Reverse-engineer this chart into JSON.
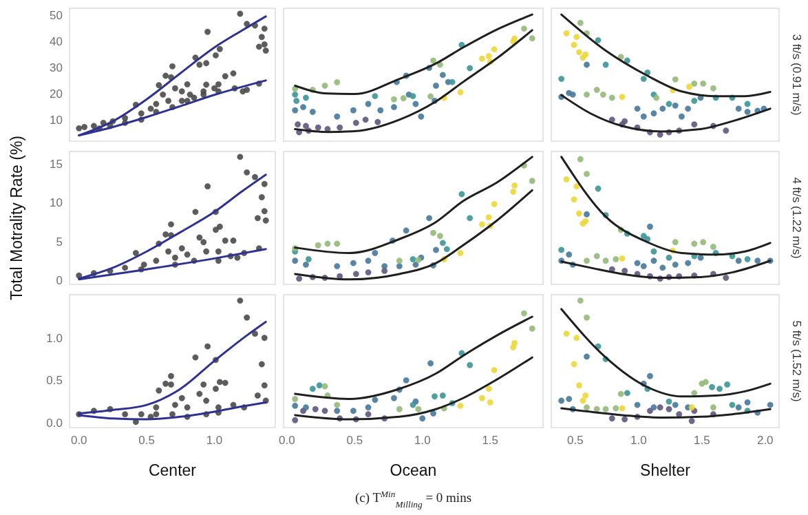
{
  "chart_data": [
    {
      "type": "scatter",
      "tick_labels": "y",
      "xlim": [
        -0.07,
        1.45
      ],
      "ylim": [
        1.8,
        52.6
      ],
      "yticks": [
        10,
        20,
        30,
        40,
        50
      ],
      "series": [
        {
          "marker": "circle",
          "color": "#4a4a4a",
          "x": [
            0,
            0.04,
            0.11,
            0.18,
            0.25,
            0.34,
            0.42,
            0.46,
            0.53,
            0.57,
            0.59,
            0.64,
            0.68,
            0.69,
            0.62,
            0.66,
            0.71,
            0.76,
            0.8,
            0.86,
            0.89,
            0.94,
            0.95,
            0.82,
            0.92,
            0.94,
            1.03,
            1.01,
            1.04,
            1.08,
            1.14,
            1.15,
            1.21,
            1.19,
            1.24,
            1.3,
            1.33,
            1.35,
            1.37,
            1.38,
            1.37,
            1.33,
            1.24,
            0.34,
            0.46,
            0.57,
            0.69,
            0.8,
            0.92,
            1.03,
            0.15,
            0.23,
            0.76,
            0.85,
            1.0
          ],
          "values": [
            6.7,
            7.2,
            7.6,
            8.8,
            9.4,
            10.6,
            15.7,
            12.4,
            14.2,
            16,
            23.2,
            26.8,
            26.2,
            30.4,
            19.6,
            17.2,
            22,
            20.8,
            23.5,
            33.7,
            31,
            31.6,
            43.6,
            19.6,
            20.8,
            23.4,
            23.5,
            34.6,
            37,
            26.6,
            27.7,
            22,
            20.8,
            50.5,
            46.6,
            46,
            37.9,
            41.6,
            44.8,
            36.4,
            38.8,
            23.8,
            21.4,
            8.8,
            10,
            13,
            14.8,
            17.2,
            19.6,
            20.8,
            6.6,
            7.6,
            17.2,
            18.4,
            22
          ]
        },
        {
          "type": "line",
          "marker": "none",
          "color": "#2e3192",
          "x": [
            0,
            0.25,
            0.5,
            0.75,
            1.0,
            1.2,
            1.38
          ],
          "values": [
            4,
            9.4,
            17.8,
            27.8,
            37.6,
            44,
            49.5
          ]
        },
        {
          "type": "line",
          "marker": "none",
          "color": "#2e3192",
          "x": [
            0,
            0.25,
            0.5,
            0.75,
            1.0,
            1.2,
            1.38
          ],
          "values": [
            4,
            7.2,
            11,
            15.2,
            19.5,
            22.5,
            25
          ]
        }
      ]
    },
    {
      "type": "scatter",
      "tick_labels": false,
      "xlim": [
        -0.025,
        1.89
      ],
      "ylim": [
        1.8,
        52.6
      ],
      "series": [
        {
          "marker": "circle",
          "color": "#5f557d",
          "x": [
            0.09,
            0.16,
            0.23,
            0.3,
            0.39,
            0.51,
            0.58,
            0.67,
            0.14,
            0.08
          ],
          "values": [
            5.2,
            5.8,
            7,
            6.4,
            7,
            8.8,
            10,
            9.1,
            7.6,
            8.2
          ]
        },
        {
          "marker": "circle",
          "color": "#47789a",
          "x": [
            0.06,
            0.12,
            0.19,
            0.37,
            0.49,
            0.6,
            0.69,
            0.79,
            0.88,
            0.81,
            0.99,
            0.95,
            1.09,
            1.15,
            1.05,
            1.19,
            1.1,
            0.9
          ],
          "values": [
            13.6,
            14.8,
            13,
            11.2,
            13.6,
            16,
            13.6,
            14.8,
            26.8,
            24.4,
            11.2,
            16,
            17.2,
            27.1,
            29.8,
            24.4,
            23,
            19.6
          ]
        },
        {
          "marker": "circle",
          "color": "#3d9596",
          "x": [
            0.06,
            0.07,
            0.14,
            0.65,
            1.29,
            1.35,
            1.22,
            0.93
          ],
          "values": [
            19.6,
            17.2,
            18.4,
            19,
            38.6,
            29.7,
            24.4,
            19
          ]
        },
        {
          "marker": "circle",
          "color": "#93b97a",
          "x": [
            0.06,
            0.19,
            0.28,
            0.37,
            0.79,
            0.86,
            1.06,
            1.08,
            1.13,
            1.75,
            1.81
          ],
          "values": [
            21.8,
            21.4,
            23,
            24.3,
            17.8,
            18.2,
            18.9,
            32.6,
            31,
            44.8,
            41.1
          ]
        },
        {
          "marker": "circle",
          "color": "#ecd73a",
          "x": [
            1.16,
            1.28,
            1.44,
            1.49,
            1.5,
            1.53,
            1.67,
            1.68
          ],
          "values": [
            18.4,
            20.5,
            33.3,
            34.3,
            32.1,
            36.9,
            39.9,
            41
          ]
        },
        {
          "type": "line",
          "marker": "none",
          "color": "#1f1f1f",
          "x": [
            0.06,
            0.3,
            0.5,
            0.83,
            1.1,
            1.3,
            1.55,
            1.81
          ],
          "values": [
            23,
            20,
            19.8,
            25.6,
            31.5,
            37.6,
            44.5,
            50.2
          ]
        },
        {
          "type": "line",
          "marker": "none",
          "color": "#1f1f1f",
          "x": [
            0.06,
            0.3,
            0.5,
            0.83,
            1.1,
            1.3,
            1.55,
            1.81
          ],
          "values": [
            6.4,
            5.3,
            5.6,
            10,
            17,
            24.4,
            33.5,
            44.2
          ]
        }
      ]
    },
    {
      "type": "scatter",
      "tick_labels": false,
      "y2label": "3 ft/s (0.91 m/s)",
      "xlim": [
        0.31,
        2.11
      ],
      "ylim": [
        1.8,
        52.6
      ],
      "series": [
        {
          "marker": "circle",
          "color": "#5f557d",
          "x": [
            0.79,
            0.89,
            0.99,
            1.09,
            1.17,
            1.24,
            1.32,
            1.44,
            1.59,
            1.69,
            0.87
          ],
          "values": [
            10,
            9.4,
            7,
            5.2,
            4.3,
            5.2,
            5.8,
            8.2,
            7.6,
            5.8,
            8.2
          ]
        },
        {
          "marker": "circle",
          "color": "#47789a",
          "x": [
            0.39,
            0.45,
            0.48,
            0.99,
            1.04,
            1.12,
            1.19,
            1.29,
            1.39,
            1.49,
            1.79,
            1.86,
            1.94,
            1.99,
            0.59,
            1.34
          ],
          "values": [
            18.7,
            20.2,
            19.6,
            14.2,
            11.2,
            12.4,
            14.2,
            15.4,
            14.2,
            18.4,
            14.2,
            13,
            13.4,
            14.2,
            31,
            11.2
          ]
        },
        {
          "marker": "circle",
          "color": "#3d9596",
          "x": [
            0.39,
            0.68,
            0.74,
            0.91,
            1.07,
            1.04,
            1.12,
            1.24,
            1.44,
            1.61,
            1.74,
            1.86
          ],
          "values": [
            25.6,
            40.4,
            31,
            32.6,
            28,
            25.6,
            19.6,
            16,
            17.2,
            18.4,
            18.4,
            16
          ]
        },
        {
          "marker": "circle",
          "color": "#93b97a",
          "x": [
            0.54,
            0.59,
            0.86,
            0.59,
            0.67,
            0.72,
            0.79,
            1.29,
            1.44,
            1.51,
            1.59,
            1.14
          ],
          "values": [
            47,
            43,
            34,
            19.6,
            21.4,
            19.6,
            18.4,
            25.4,
            23.8,
            23.8,
            22,
            18.4
          ]
        },
        {
          "marker": "circle",
          "color": "#ecd73a",
          "x": [
            0.43,
            0.51,
            0.49,
            0.53,
            0.56,
            0.58,
            0.87,
            1.27,
            1.4
          ],
          "values": [
            43,
            41.6,
            38.6,
            35.8,
            33.7,
            34.9,
            18.7,
            21.3,
            22.6
          ]
        },
        {
          "type": "line",
          "marker": "none",
          "color": "#1f1f1f",
          "x": [
            0.39,
            0.74,
            1.07,
            1.34,
            1.61,
            1.84,
            2.04
          ],
          "values": [
            50.2,
            36.4,
            26.8,
            20.8,
            19,
            19,
            20.6
          ]
        },
        {
          "type": "line",
          "marker": "none",
          "color": "#1f1f1f",
          "x": [
            0.39,
            0.62,
            0.87,
            1.19,
            1.49,
            1.74,
            2.04
          ],
          "values": [
            19.4,
            12.4,
            7.6,
            5.5,
            6.4,
            9.4,
            14.2
          ]
        }
      ]
    },
    {
      "type": "scatter",
      "tick_labels": "y",
      "ylabel": "Total Motrality Rate (%)",
      "xlim": [
        -0.07,
        1.45
      ],
      "ylim": [
        -0.54,
        16.6
      ],
      "yticks": [
        0,
        5,
        10,
        15
      ],
      "series": [
        {
          "marker": "circle",
          "color": "#4a4a4a",
          "x": [
            0,
            0.11,
            0.23,
            0.34,
            0.42,
            0.48,
            0.57,
            0.59,
            0.64,
            0.68,
            0.68,
            0.66,
            0.71,
            0.76,
            0.8,
            0.86,
            0.89,
            0.92,
            0.95,
            0.94,
            1.01,
            1.01,
            1.04,
            1.03,
            1.08,
            1.14,
            1.12,
            1.19,
            1.24,
            1.3,
            1.32,
            1.35,
            1.37,
            1.37,
            1.38,
            1.33,
            1.22,
            0.85,
            0.71,
            0.46,
            1.03,
            1.17
          ],
          "values": [
            0.6,
            0.9,
            1.2,
            1.6,
            3.5,
            2,
            2.5,
            4.7,
            5.9,
            7.2,
            5.8,
            3.7,
            2.9,
            4.1,
            3.3,
            8.8,
            5.5,
            4.9,
            12.1,
            3.7,
            8.8,
            6.5,
            6.9,
            3.7,
            5.1,
            5.1,
            3.1,
            15.9,
            13.9,
            13.3,
            8,
            10.7,
            12.4,
            8.9,
            7.7,
            4.1,
            3.5,
            2.5,
            2,
            1.4,
            2.5,
            2.9
          ]
        },
        {
          "type": "line",
          "marker": "none",
          "color": "#2e3192",
          "x": [
            0,
            0.25,
            0.5,
            0.75,
            1.0,
            1.2,
            1.38
          ],
          "values": [
            0.2,
            1.6,
            3.7,
            6.2,
            8.8,
            11.4,
            13.6
          ]
        },
        {
          "type": "line",
          "marker": "none",
          "color": "#2e3192",
          "x": [
            0,
            0.5,
            1.0,
            1.38
          ],
          "values": [
            0.1,
            1.4,
            2.8,
            4.0
          ]
        }
      ]
    },
    {
      "type": "scatter",
      "tick_labels": false,
      "xlim": [
        -0.025,
        1.89
      ],
      "ylim": [
        -0.54,
        16.6
      ],
      "series": [
        {
          "marker": "circle",
          "color": "#5f557d",
          "x": [
            0.09,
            0.19,
            0.28,
            0.39,
            0.51,
            0.6,
            0.72
          ],
          "values": [
            0.2,
            0.4,
            0.3,
            0.5,
            0.8,
            1,
            1.2
          ]
        },
        {
          "marker": "circle",
          "color": "#47789a",
          "x": [
            0.06,
            0.14,
            0.37,
            0.49,
            0.6,
            0.72,
            0.83,
            0.88,
            0.78,
            0.95,
            0.99,
            1.08,
            1.1,
            1.05,
            0.65
          ],
          "values": [
            2.5,
            2,
            1.8,
            2.2,
            2.5,
            1.8,
            1.8,
            6.4,
            5.1,
            2,
            2.9,
            1.9,
            3.9,
            8,
            3.5
          ]
        },
        {
          "marker": "circle",
          "color": "#3d9596",
          "x": [
            0.06,
            0.16,
            1.29,
            1.35,
            1.15,
            1.18,
            0.93
          ],
          "values": [
            3.7,
            2.7,
            11.1,
            8,
            4.8,
            4,
            2.7
          ]
        },
        {
          "marker": "circle",
          "color": "#93b97a",
          "x": [
            0.06,
            0.23,
            0.3,
            0.37,
            0.83,
            0.97,
            1.08,
            1.13,
            1.75,
            1.81
          ],
          "values": [
            4.1,
            4.5,
            4.7,
            4.7,
            2.5,
            2.6,
            6.1,
            5.7,
            14.8,
            12.8
          ]
        },
        {
          "marker": "circle",
          "color": "#ecd73a",
          "x": [
            1.16,
            1.28,
            1.44,
            1.49,
            1.5,
            1.53,
            1.67,
            1.68
          ],
          "values": [
            2.7,
            3.5,
            7.2,
            8.1,
            7,
            9.8,
            11.4,
            12.2
          ]
        },
        {
          "type": "line",
          "marker": "none",
          "color": "#1f1f1f",
          "x": [
            0.06,
            0.46,
            0.83,
            1.1,
            1.3,
            1.55,
            1.81
          ],
          "values": [
            4.2,
            3.5,
            5.3,
            7.5,
            10.2,
            12.6,
            15.9
          ]
        },
        {
          "type": "line",
          "marker": "none",
          "color": "#1f1f1f",
          "x": [
            0.06,
            0.46,
            0.83,
            1.1,
            1.3,
            1.55,
            1.81
          ],
          "values": [
            0.8,
            0.1,
            0.8,
            2.2,
            4.5,
            7.7,
            11.6
          ]
        }
      ]
    },
    {
      "type": "scatter",
      "tick_labels": false,
      "y2label": "4 ft/s (1.22 m/s)",
      "xlim": [
        0.31,
        2.11
      ],
      "ylim": [
        -0.54,
        16.6
      ],
      "series": [
        {
          "marker": "circle",
          "color": "#5f557d",
          "x": [
            0.79,
            0.89,
            0.99,
            1.09,
            1.17,
            1.24,
            1.32,
            1.44,
            1.59,
            1.69
          ],
          "values": [
            1.4,
            1.2,
            0.8,
            0.5,
            0.2,
            0.4,
            0.5,
            0.6,
            0.8,
            0.3
          ]
        },
        {
          "marker": "circle",
          "color": "#47789a",
          "x": [
            0.39,
            0.45,
            0.48,
            0.99,
            1.04,
            1.12,
            1.19,
            1.29,
            1.39,
            1.49,
            1.79,
            1.94,
            2.04,
            0.59,
            1.09
          ],
          "values": [
            2.5,
            3.3,
            2,
            2.2,
            1.8,
            2.5,
            1.6,
            2,
            2.2,
            2.9,
            2.5,
            2.5,
            2.5,
            8.5,
            6.9
          ]
        },
        {
          "marker": "circle",
          "color": "#3d9596",
          "x": [
            0.39,
            0.68,
            0.74,
            0.91,
            1.07,
            1.04,
            1.12,
            1.24,
            1.44,
            1.61,
            1.74,
            1.86
          ],
          "values": [
            3.9,
            11.8,
            8.4,
            6,
            5.3,
            5.7,
            3.7,
            2.9,
            3.1,
            3.5,
            3.1,
            2.7
          ]
        },
        {
          "marker": "circle",
          "color": "#93b97a",
          "x": [
            0.54,
            0.59,
            0.86,
            0.59,
            0.67,
            0.74,
            0.82,
            1.29,
            1.44,
            1.51,
            1.59
          ],
          "values": [
            15.6,
            13.7,
            6.5,
            2.5,
            3.1,
            2.5,
            2.7,
            4.9,
            4.7,
            4.9,
            4.3
          ]
        },
        {
          "marker": "circle",
          "color": "#ecd73a",
          "x": [
            0.43,
            0.51,
            0.49,
            0.53,
            0.56,
            0.58,
            0.87,
            1.27
          ],
          "values": [
            13,
            12.1,
            10.4,
            8.6,
            7.3,
            7.6,
            2.8,
            3.8
          ]
        },
        {
          "type": "line",
          "marker": "none",
          "color": "#1f1f1f",
          "x": [
            0.39,
            0.74,
            1.07,
            1.34,
            1.61,
            1.84,
            2.04
          ],
          "values": [
            15.9,
            8.2,
            4.9,
            3.5,
            3.3,
            3.7,
            4.8
          ]
        },
        {
          "type": "line",
          "marker": "none",
          "color": "#1f1f1f",
          "x": [
            0.39,
            0.62,
            0.87,
            1.19,
            1.49,
            1.74,
            2.04
          ],
          "values": [
            2.4,
            1.6,
            0.8,
            0.3,
            0.4,
            1,
            2.5
          ]
        }
      ]
    },
    {
      "type": "scatter",
      "xlabel": "Center",
      "xlim": [
        -0.07,
        1.45
      ],
      "xticks": [
        {
          "value": 0,
          "label": "0.0"
        },
        {
          "value": 0.5,
          "label": "0.5"
        },
        {
          "value": 1,
          "label": "1.0"
        }
      ],
      "ylim": [
        -0.057,
        1.51
      ],
      "yticks": [
        {
          "value": 0,
          "label": "0.0"
        },
        {
          "value": 0.5,
          "label": "0.5"
        },
        {
          "value": 1,
          "label": "1.0"
        }
      ],
      "series": [
        {
          "marker": "circle",
          "color": "#4a4a4a",
          "x": [
            0,
            0.11,
            0.23,
            0.34,
            0.42,
            0.46,
            0.57,
            0.57,
            0.59,
            0.64,
            0.68,
            0.68,
            0.71,
            0.76,
            0.8,
            0.86,
            0.89,
            0.92,
            0.95,
            0.94,
            1.01,
            1.01,
            1.04,
            1.03,
            1.08,
            1.14,
            1.19,
            1.24,
            1.3,
            1.32,
            1.35,
            1.37,
            1.37,
            1.38,
            0.94,
            0.8,
            0.69,
            0.53,
            1.03,
            1.22
          ],
          "values": [
            0.1,
            0.14,
            0.16,
            0.1,
            0.01,
            0.1,
            0.1,
            0.18,
            0.38,
            0.46,
            0.55,
            0.45,
            0.21,
            0.29,
            0.18,
            0.77,
            0.34,
            0.45,
            0.9,
            0.26,
            0.74,
            0.4,
            0.48,
            0.18,
            0.47,
            0.21,
            1.44,
            1.24,
            1.05,
            0.32,
            0.69,
            1.0,
            0.44,
            0.26,
            0.1,
            0.07,
            0.1,
            0.07,
            0.12,
            0.18
          ]
        },
        {
          "type": "line",
          "marker": "none",
          "color": "#2e3192",
          "x": [
            0,
            0.25,
            0.5,
            0.75,
            1.0,
            1.24,
            1.38
          ],
          "values": [
            0.11,
            0.15,
            0.21,
            0.4,
            0.73,
            1.03,
            1.19
          ]
        },
        {
          "type": "line",
          "marker": "none",
          "color": "#2e3192",
          "x": [
            0,
            0.25,
            0.5,
            0.75,
            1.0,
            1.2,
            1.38
          ],
          "values": [
            0.09,
            0.05,
            0.04,
            0.07,
            0.13,
            0.19,
            0.24
          ]
        }
      ]
    },
    {
      "type": "scatter",
      "tick_labels": "x",
      "xlabel": "Ocean",
      "annotations": [
        "(c) T$^{Min}$$_{Milling}$ = 0 mins"
      ],
      "xlim": [
        -0.025,
        1.89
      ],
      "xticks": [
        {
          "value": 0,
          "label": "0.0"
        },
        {
          "value": 0.5,
          "label": "0.5"
        },
        {
          "value": 1,
          "label": "1.0"
        },
        {
          "value": 1.5,
          "label": "1.5"
        }
      ],
      "ylim": [
        -0.057,
        1.51
      ],
      "series": [
        {
          "marker": "circle",
          "color": "#5f557d",
          "x": [
            0.06,
            0.12,
            0.21,
            0.28,
            0.39,
            0.51,
            0.6,
            0.72
          ],
          "values": [
            0.03,
            0.14,
            0.16,
            0.14,
            0.05,
            0.04,
            0.1,
            0.05
          ]
        },
        {
          "marker": "circle",
          "color": "#47789a",
          "x": [
            0.06,
            0.14,
            0.37,
            0.49,
            0.6,
            0.79,
            0.88,
            0.83,
            0.95,
            1.0,
            1.06,
            1.08,
            0.65
          ],
          "values": [
            0.2,
            0.18,
            0.14,
            0.14,
            0.18,
            0.29,
            0.5,
            0.39,
            0.25,
            0.05,
            0.7,
            0.11,
            0.27
          ]
        },
        {
          "marker": "circle",
          "color": "#3d9596",
          "x": [
            0.19,
            0.24,
            1.29,
            1.35,
            1.09,
            1.15,
            0.93,
            1.22
          ],
          "values": [
            0.4,
            0.44,
            0.82,
            0.68,
            0.31,
            0.32,
            0.21,
            0.23
          ]
        },
        {
          "marker": "circle",
          "color": "#93b97a",
          "x": [
            0.06,
            0.28,
            0.3,
            0.37,
            0.83,
            0.97,
            1.16,
            1.75,
            1.81
          ],
          "values": [
            0.28,
            0.43,
            0.32,
            0.21,
            0.16,
            0.16,
            0.17,
            1.29,
            1.11
          ]
        },
        {
          "marker": "circle",
          "color": "#ecd73a",
          "x": [
            1.28,
            1.44,
            1.49,
            1.5,
            1.53,
            1.67,
            1.68
          ],
          "values": [
            0.2,
            0.29,
            0.4,
            0.24,
            0.62,
            0.89,
            0.94
          ]
        },
        {
          "type": "line",
          "marker": "none",
          "color": "#1f1f1f",
          "x": [
            0.06,
            0.46,
            0.83,
            1.1,
            1.3,
            1.55,
            1.81
          ],
          "values": [
            0.34,
            0.28,
            0.4,
            0.58,
            0.79,
            1.03,
            1.25
          ]
        },
        {
          "type": "line",
          "marker": "none",
          "color": "#1f1f1f",
          "x": [
            0.06,
            0.46,
            0.83,
            1.1,
            1.3,
            1.55,
            1.81
          ],
          "values": [
            0.09,
            0.04,
            0.07,
            0.16,
            0.29,
            0.51,
            0.77
          ]
        }
      ]
    },
    {
      "type": "scatter",
      "tick_labels": "x",
      "xlabel": "Shelter",
      "y2label": "5 ft/s (1.52 m/s)",
      "xlim": [
        0.31,
        2.11
      ],
      "xticks": [
        {
          "value": 0.5,
          "label": "0.5"
        },
        {
          "value": 1,
          "label": "1.0"
        },
        {
          "value": 1.5,
          "label": "1.5"
        },
        {
          "value": 2,
          "label": "2.0"
        }
      ],
      "ylim": [
        -0.057,
        1.51
      ],
      "series": [
        {
          "marker": "circle",
          "color": "#5f557d",
          "x": [
            0.79,
            0.89,
            0.99,
            1.09,
            1.17,
            1.24,
            1.32,
            1.42,
            1.44,
            1.59
          ],
          "values": [
            0.05,
            0.04,
            0.07,
            0.14,
            0.18,
            0.16,
            0.1,
            0.02,
            0.14,
            0.1
          ]
        },
        {
          "marker": "circle",
          "color": "#47789a",
          "x": [
            0.39,
            0.45,
            0.48,
            0.59,
            0.99,
            1.04,
            1.09,
            1.12,
            1.29,
            1.39,
            1.79,
            1.94,
            2.04,
            1.86
          ],
          "values": [
            0.26,
            0.28,
            0.16,
            0.78,
            0.21,
            0.46,
            0.55,
            0.18,
            0.21,
            0.18,
            0.18,
            0.12,
            0.21,
            0.24
          ]
        },
        {
          "marker": "circle",
          "color": "#3d9596",
          "x": [
            0.68,
            0.74,
            0.91,
            1.07,
            1.24,
            1.58,
            1.7,
            1.74,
            1.86,
            1.64
          ],
          "values": [
            0.9,
            0.75,
            0.35,
            0.4,
            0.25,
            0.42,
            0.45,
            0.21,
            0.14,
            0.4
          ]
        },
        {
          "marker": "circle",
          "color": "#93b97a",
          "x": [
            0.54,
            0.59,
            0.86,
            0.59,
            0.67,
            0.74,
            0.82,
            1.44,
            1.5,
            1.53,
            1.59
          ],
          "values": [
            1.44,
            1.24,
            0.34,
            0.18,
            0.16,
            0.16,
            0.17,
            0.35,
            0.46,
            0.48,
            0.18
          ]
        },
        {
          "marker": "circle",
          "color": "#ecd73a",
          "x": [
            0.43,
            0.51,
            0.49,
            0.53,
            0.56,
            0.58,
            0.87,
            1.42
          ],
          "values": [
            1.05,
            1.0,
            0.69,
            0.44,
            0.26,
            0.32,
            0.17,
            0.18
          ]
        },
        {
          "type": "line",
          "marker": "none",
          "color": "#1f1f1f",
          "x": [
            0.39,
            0.74,
            1.07,
            1.34,
            1.61,
            1.84,
            2.04
          ],
          "values": [
            1.34,
            0.77,
            0.42,
            0.31,
            0.32,
            0.37,
            0.46
          ]
        },
        {
          "type": "line",
          "marker": "none",
          "color": "#1f1f1f",
          "x": [
            0.39,
            0.87,
            1.19,
            1.49,
            1.74,
            2.04
          ],
          "values": [
            0.17,
            0.09,
            0.06,
            0.07,
            0.1,
            0.16
          ]
        }
      ]
    }
  ]
}
